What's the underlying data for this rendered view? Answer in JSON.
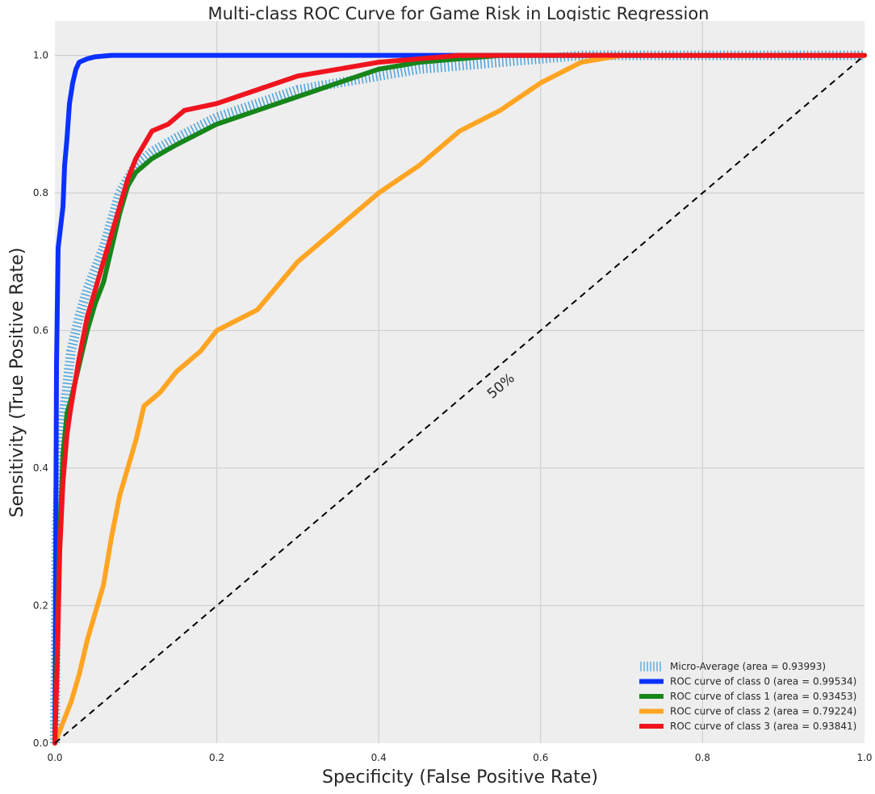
{
  "chart_data": {
    "type": "line",
    "title": "Multi-class ROC Curve for Game Risk in Logistic Regression",
    "xlabel": "Specificity (False Positive Rate)",
    "ylabel": "Sensitivity (True Positive Rate)",
    "xlim": [
      0.0,
      1.0
    ],
    "ylim": [
      0.0,
      1.05
    ],
    "xticks": [
      "0.0",
      "0.2",
      "0.4",
      "0.6",
      "0.8",
      "1.0"
    ],
    "yticks": [
      "0.0",
      "0.2",
      "0.4",
      "0.6",
      "0.8",
      "1.0"
    ],
    "grid": true,
    "legend_position": "lower-right",
    "annotation": {
      "text": "50%",
      "x": 0.54,
      "y": 0.5
    },
    "diagonal": {
      "x": [
        0,
        1
      ],
      "y": [
        0,
        1
      ],
      "style": "dashed",
      "color": "#000000"
    },
    "series": [
      {
        "name": "Micro-Average (area = 0.93993)",
        "color": "#4aa3dc",
        "style": "hatched",
        "x": [
          0.0,
          0.002,
          0.005,
          0.01,
          0.015,
          0.02,
          0.03,
          0.04,
          0.05,
          0.06,
          0.07,
          0.08,
          0.09,
          0.1,
          0.12,
          0.15,
          0.2,
          0.25,
          0.3,
          0.35,
          0.4,
          0.45,
          0.5,
          0.55,
          0.6,
          0.65,
          0.7,
          0.8,
          0.9,
          1.0
        ],
        "y": [
          0.0,
          0.3,
          0.4,
          0.47,
          0.52,
          0.57,
          0.62,
          0.66,
          0.69,
          0.72,
          0.76,
          0.8,
          0.82,
          0.84,
          0.86,
          0.88,
          0.91,
          0.93,
          0.95,
          0.96,
          0.97,
          0.98,
          0.985,
          0.99,
          0.995,
          1.0,
          1.0,
          1.0,
          1.0,
          1.0
        ]
      },
      {
        "name": "ROC curve of class 0 (area = 0.99534)",
        "color": "#0a31ff",
        "style": "solid",
        "x": [
          0.0,
          0.002,
          0.004,
          0.006,
          0.008,
          0.01,
          0.012,
          0.015,
          0.018,
          0.022,
          0.026,
          0.03,
          0.04,
          0.05,
          0.07,
          0.1,
          0.5,
          1.0
        ],
        "y": [
          0.0,
          0.55,
          0.72,
          0.74,
          0.76,
          0.78,
          0.84,
          0.88,
          0.93,
          0.96,
          0.98,
          0.99,
          0.995,
          0.998,
          1.0,
          1.0,
          1.0,
          1.0
        ]
      },
      {
        "name": "ROC curve of class 1 (area = 0.93453)",
        "color": "#17851a",
        "style": "solid",
        "x": [
          0.0,
          0.003,
          0.006,
          0.01,
          0.015,
          0.02,
          0.03,
          0.04,
          0.05,
          0.06,
          0.07,
          0.08,
          0.09,
          0.1,
          0.12,
          0.15,
          0.2,
          0.25,
          0.3,
          0.35,
          0.4,
          0.45,
          0.5,
          0.55,
          0.6,
          0.7,
          1.0
        ],
        "y": [
          0.0,
          0.15,
          0.3,
          0.42,
          0.48,
          0.5,
          0.55,
          0.6,
          0.64,
          0.67,
          0.72,
          0.77,
          0.81,
          0.83,
          0.85,
          0.87,
          0.9,
          0.92,
          0.94,
          0.96,
          0.98,
          0.99,
          0.995,
          1.0,
          1.0,
          1.0,
          1.0
        ]
      },
      {
        "name": "ROC curve of class 2 (area = 0.79224)",
        "color": "#ffa523",
        "style": "solid",
        "x": [
          0.0,
          0.01,
          0.02,
          0.03,
          0.04,
          0.05,
          0.06,
          0.07,
          0.08,
          0.09,
          0.1,
          0.11,
          0.12,
          0.13,
          0.15,
          0.18,
          0.2,
          0.25,
          0.3,
          0.35,
          0.4,
          0.45,
          0.5,
          0.55,
          0.6,
          0.65,
          0.7,
          0.8,
          1.0
        ],
        "y": [
          0.0,
          0.03,
          0.06,
          0.1,
          0.15,
          0.19,
          0.23,
          0.3,
          0.36,
          0.4,
          0.44,
          0.49,
          0.5,
          0.51,
          0.54,
          0.57,
          0.6,
          0.63,
          0.7,
          0.75,
          0.8,
          0.84,
          0.89,
          0.92,
          0.96,
          0.99,
          1.0,
          1.0,
          1.0
        ]
      },
      {
        "name": "ROC curve of class 3 (area = 0.93841)",
        "color": "#f0141e",
        "style": "solid",
        "x": [
          0.0,
          0.003,
          0.006,
          0.01,
          0.015,
          0.02,
          0.03,
          0.04,
          0.05,
          0.06,
          0.07,
          0.08,
          0.09,
          0.1,
          0.12,
          0.14,
          0.16,
          0.2,
          0.25,
          0.3,
          0.35,
          0.4,
          0.45,
          0.5,
          0.6,
          0.7,
          1.0
        ],
        "y": [
          0.0,
          0.12,
          0.28,
          0.38,
          0.45,
          0.49,
          0.56,
          0.62,
          0.66,
          0.7,
          0.74,
          0.78,
          0.82,
          0.85,
          0.89,
          0.9,
          0.92,
          0.93,
          0.95,
          0.97,
          0.98,
          0.99,
          0.995,
          1.0,
          1.0,
          1.0,
          1.0
        ]
      }
    ]
  }
}
